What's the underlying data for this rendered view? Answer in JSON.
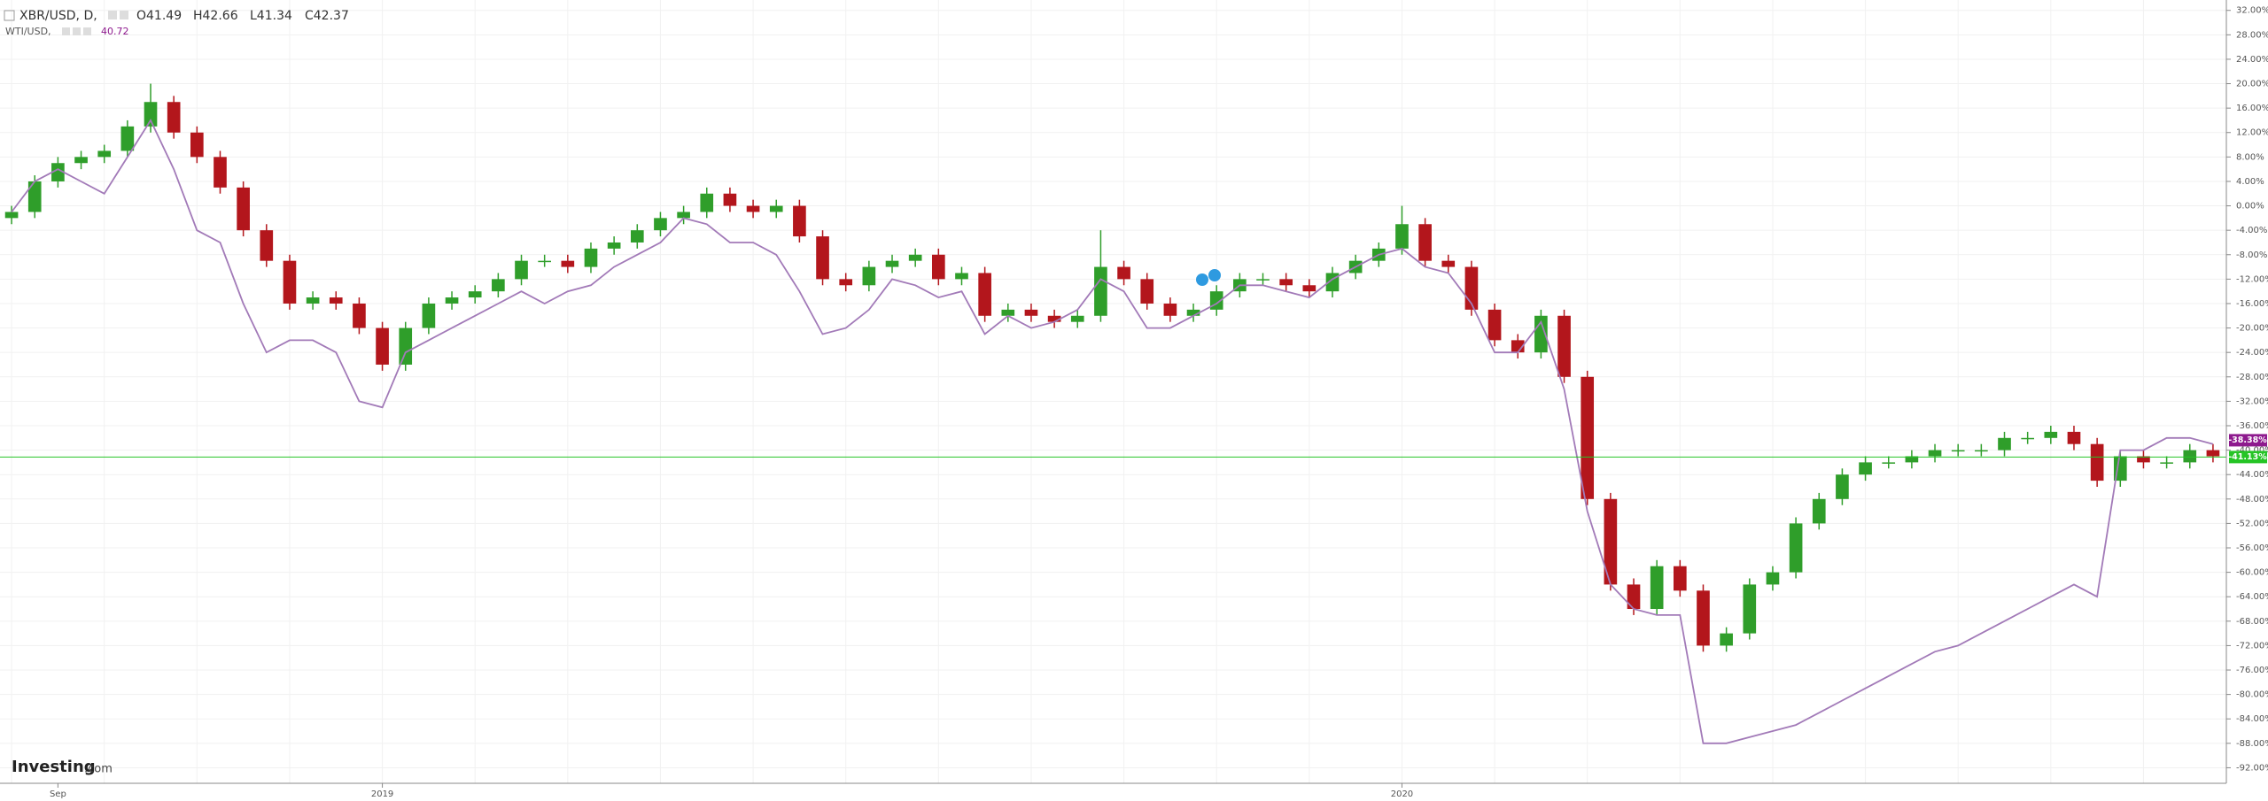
{
  "chart_data": {
    "type": "candlestick",
    "header": {
      "ohlc_labels": [
        "O41.49",
        "H42.66",
        "L41.34",
        "C42.37"
      ],
      "wti_last_label": "40.72"
    },
    "logo": {
      "brand": "Investing",
      "suffix": ".com"
    },
    "categories": [
      null,
      null,
      "Sep",
      null,
      null,
      null,
      null,
      null,
      null,
      null,
      null,
      null,
      null,
      null,
      null,
      null,
      "2019",
      null,
      null,
      null,
      null,
      null,
      null,
      null,
      null,
      null,
      null,
      null,
      null,
      null,
      null,
      null,
      null,
      null,
      null,
      null,
      null,
      null,
      null,
      null,
      null,
      null,
      null,
      null,
      null,
      null,
      null,
      null,
      null,
      null,
      null,
      null,
      null,
      null,
      null,
      null,
      null,
      null,
      null,
      null,
      "2020",
      null,
      null,
      null,
      null,
      null,
      null,
      null,
      null,
      null,
      null,
      null,
      null,
      null,
      null,
      null,
      null,
      null,
      null,
      null,
      null,
      null,
      null,
      null,
      null,
      null,
      null,
      null,
      null,
      null,
      null,
      null,
      null,
      null,
      null,
      null
    ],
    "series": [
      {
        "name": "XBR/USD, D,",
        "type": "candlestick",
        "up_color": "#2f9e2a",
        "down_color": "#b3161c",
        "open": [
          -2,
          -1,
          4,
          7,
          8,
          9,
          13,
          17,
          12,
          8,
          3,
          -4,
          -9,
          -16,
          -15,
          -16,
          -20,
          -26,
          -20,
          -16,
          -15,
          -14,
          -12,
          -9,
          -9,
          -10,
          -7,
          -6,
          -4,
          -2,
          -1,
          2,
          0,
          -1,
          0,
          -5,
          -12,
          -13,
          -10,
          -9,
          -8,
          -12,
          -11,
          -18,
          -17,
          -18,
          -19,
          -18,
          -10,
          -12,
          -16,
          -18,
          -17,
          -14,
          -12,
          -12,
          -13,
          -14,
          -11,
          -9,
          -7,
          -3,
          -9,
          -10,
          -17,
          -22,
          -24,
          -18,
          -28,
          -48,
          -62,
          -66,
          -59,
          -63,
          -72,
          -70,
          -62,
          -60,
          -52,
          -48,
          -44,
          -42,
          -42,
          -41,
          -40,
          -40,
          -40,
          -38,
          -38,
          -37,
          -39,
          -45,
          -41,
          -42,
          -42,
          -40
        ],
        "high": [
          0,
          5,
          8,
          9,
          10,
          14,
          20,
          18,
          13,
          9,
          4,
          -3,
          -8,
          -14,
          -14,
          -15,
          -19,
          -19,
          -15,
          -14,
          -13,
          -11,
          -8,
          -8,
          -8,
          -6,
          -5,
          -3,
          -1,
          0,
          3,
          3,
          1,
          1,
          1,
          -4,
          -11,
          -9,
          -8,
          -7,
          -7,
          -10,
          -10,
          -16,
          -16,
          -17,
          -17,
          -4,
          -9,
          -11,
          -15,
          -16,
          -13,
          -11,
          -11,
          -11,
          -12,
          -10,
          -8,
          -6,
          0,
          -2,
          -8,
          -9,
          -16,
          -21,
          -17,
          -17,
          -27,
          -47,
          -61,
          -58,
          -58,
          -62,
          -69,
          -61,
          -59,
          -51,
          -47,
          -43,
          -41,
          -41,
          -40,
          -39,
          -39,
          -39,
          -37,
          -37,
          -36,
          -36,
          -38,
          -40,
          -40,
          -41,
          -39,
          -39
        ],
        "low": [
          -3,
          -2,
          3,
          6,
          7,
          8,
          12,
          11,
          7,
          2,
          -5,
          -10,
          -17,
          -17,
          -17,
          -21,
          -27,
          -27,
          -21,
          -17,
          -16,
          -15,
          -13,
          -10,
          -11,
          -11,
          -8,
          -7,
          -5,
          -3,
          -2,
          -1,
          -2,
          -2,
          -6,
          -13,
          -14,
          -14,
          -11,
          -10,
          -13,
          -13,
          -19,
          -19,
          -19,
          -20,
          -20,
          -19,
          -13,
          -17,
          -19,
          -19,
          -18,
          -15,
          -13,
          -14,
          -15,
          -15,
          -12,
          -10,
          -8,
          -10,
          -11,
          -18,
          -23,
          -25,
          -25,
          -29,
          -49,
          -63,
          -67,
          -67,
          -64,
          -73,
          -73,
          -71,
          -63,
          -61,
          -53,
          -49,
          -45,
          -43,
          -43,
          -42,
          -41,
          -41,
          -41,
          -39,
          -39,
          -40,
          -46,
          -46,
          -43,
          -43,
          -43,
          -42
        ],
        "close": [
          -1,
          4,
          7,
          8,
          9,
          13,
          17,
          12,
          8,
          3,
          -4,
          -9,
          -16,
          -15,
          -16,
          -20,
          -26,
          -20,
          -16,
          -15,
          -14,
          -12,
          -9,
          -9,
          -10,
          -7,
          -6,
          -4,
          -2,
          -1,
          2,
          0,
          -1,
          0,
          -5,
          -12,
          -13,
          -10,
          -9,
          -8,
          -12,
          -11,
          -18,
          -17,
          -18,
          -19,
          -18,
          -10,
          -12,
          -16,
          -18,
          -17,
          -14,
          -12,
          -12,
          -13,
          -14,
          -11,
          -9,
          -7,
          -3,
          -9,
          -10,
          -17,
          -22,
          -24,
          -18,
          -28,
          -48,
          -62,
          -66,
          -59,
          -63,
          -72,
          -70,
          -62,
          -60,
          -52,
          -48,
          -44,
          -42,
          -42,
          -41,
          -40,
          -40,
          -40,
          -38,
          -38,
          -37,
          -39,
          -45,
          -41,
          -42,
          -42,
          -40,
          -41
        ]
      },
      {
        "name": "WTI/USD,",
        "type": "line",
        "color": "#a27ab8",
        "values": [
          -1,
          4,
          6,
          4,
          2,
          8,
          14,
          6,
          -4,
          -6,
          -16,
          -24,
          -22,
          -22,
          -24,
          -32,
          -33,
          -24,
          -22,
          -20,
          -18,
          -16,
          -14,
          -16,
          -14,
          -13,
          -10,
          -8,
          -6,
          -2,
          -3,
          -6,
          -6,
          -8,
          -14,
          -21,
          -20,
          -17,
          -12,
          -13,
          -15,
          -14,
          -21,
          -18,
          -20,
          -19,
          -17,
          -12,
          -14,
          -20,
          -20,
          -18,
          -16,
          -13,
          -13,
          -14,
          -15,
          -12,
          -10,
          -8,
          -7,
          -10,
          -11,
          -16,
          -24,
          -24,
          -19,
          -30,
          -50,
          -62,
          -66,
          -67,
          -67,
          -88,
          -88,
          -87,
          -86,
          -85,
          -83,
          -81,
          -79,
          -77,
          -75,
          -73,
          -72,
          -70,
          -68,
          -66,
          -64,
          -62,
          -64,
          -40,
          -40,
          -38,
          -38,
          -39
        ]
      }
    ],
    "markers": [
      {
        "value": -38.38,
        "label": "-38.38%",
        "color": "#8e1a8e",
        "line": false
      },
      {
        "value": -41.13,
        "label": "-41.13%",
        "color": "#25c425",
        "line": true
      }
    ],
    "ylim": [
      -94.4,
      33.7
    ],
    "yticks": [
      {
        "value": 32,
        "label": "32.00%"
      },
      {
        "value": 28,
        "label": "28.00%"
      },
      {
        "value": 24,
        "label": "24.00%"
      },
      {
        "value": 20,
        "label": "20.00%"
      },
      {
        "value": 16,
        "label": "16.00%"
      },
      {
        "value": 12,
        "label": "12.00%"
      },
      {
        "value": 8,
        "label": "8.00%"
      },
      {
        "value": 4,
        "label": "4.00%"
      },
      {
        "value": 0,
        "label": "0.00%"
      },
      {
        "value": -4,
        "label": "-4.00%"
      },
      {
        "value": -8,
        "label": "-8.00%"
      },
      {
        "value": -12,
        "label": "-12.00%"
      },
      {
        "value": -16,
        "label": "-16.00%"
      },
      {
        "value": -20,
        "label": "-20.00%"
      },
      {
        "value": -24,
        "label": "-24.00%"
      },
      {
        "value": -28,
        "label": "-28.00%"
      },
      {
        "value": -32,
        "label": "-32.00%"
      },
      {
        "value": -36,
        "label": "-36.00%"
      },
      {
        "value": -40,
        "label": "-40.00%"
      },
      {
        "value": -44,
        "label": "-44.00%"
      },
      {
        "value": -48,
        "label": "-48.00%"
      },
      {
        "value": -52,
        "label": "-52.00%"
      },
      {
        "value": -56,
        "label": "-56.00%"
      },
      {
        "value": -60,
        "label": "-60.00%"
      },
      {
        "value": -64,
        "label": "-64.00%"
      },
      {
        "value": -68,
        "label": "-68.00%"
      },
      {
        "value": -72,
        "label": "-72.00%"
      },
      {
        "value": -76,
        "label": "-76.00%"
      },
      {
        "value": -80,
        "label": "-80.00%"
      },
      {
        "value": -84,
        "label": "-84.00%"
      },
      {
        "value": -88,
        "label": "-88.00%"
      },
      {
        "value": -92,
        "label": "-92.00%"
      }
    ],
    "grid": true
  }
}
